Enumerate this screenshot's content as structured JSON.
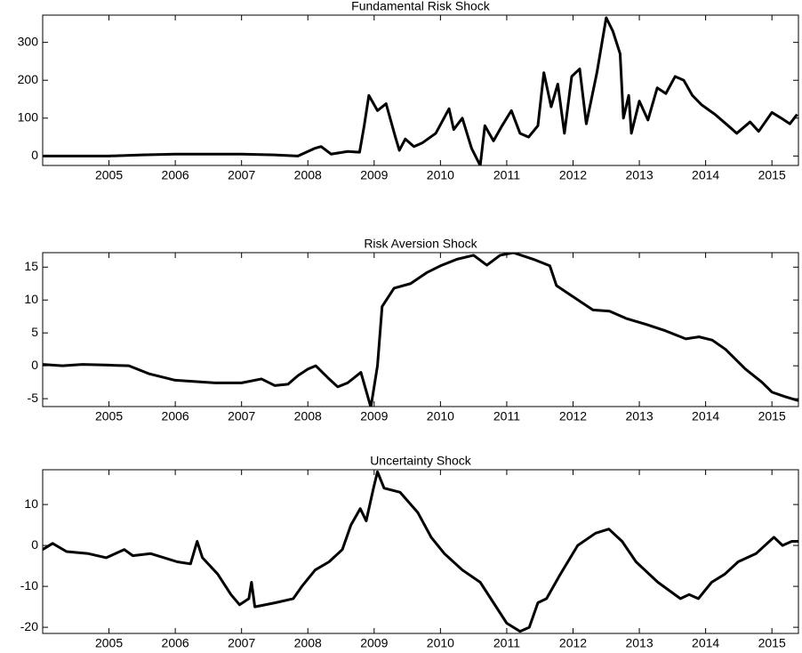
{
  "chart_data": [
    {
      "type": "line",
      "title": "Fundamental Risk Shock",
      "color": "#000000",
      "x": [
        2004.0,
        2004.5,
        2005.0,
        2005.5,
        2006.0,
        2006.5,
        2007.0,
        2007.5,
        2007.85,
        2008.1,
        2008.2,
        2008.35,
        2008.6,
        2008.78,
        2008.85,
        2008.92,
        2009.05,
        2009.18,
        2009.32,
        2009.38,
        2009.47,
        2009.6,
        2009.73,
        2009.93,
        2010.13,
        2010.2,
        2010.33,
        2010.47,
        2010.6,
        2010.67,
        2010.8,
        2010.93,
        2011.07,
        2011.2,
        2011.33,
        2011.47,
        2011.56,
        2011.67,
        2011.77,
        2011.87,
        2011.98,
        2012.1,
        2012.2,
        2012.36,
        2012.5,
        2012.6,
        2012.71,
        2012.76,
        2012.84,
        2012.88,
        2013.0,
        2013.13,
        2013.27,
        2013.4,
        2013.54,
        2013.67,
        2013.8,
        2013.94,
        2014.14,
        2014.34,
        2014.47,
        2014.67,
        2014.8,
        2015.0,
        2015.14,
        2015.27,
        2015.38
      ],
      "values": [
        0,
        0,
        0,
        3,
        5,
        5,
        5,
        3,
        0,
        20,
        25,
        5,
        12,
        10,
        80,
        160,
        120,
        138,
        50,
        15,
        45,
        25,
        35,
        60,
        125,
        70,
        100,
        20,
        -25,
        80,
        40,
        80,
        120,
        60,
        50,
        80,
        220,
        130,
        190,
        60,
        210,
        230,
        85,
        220,
        365,
        330,
        270,
        100,
        160,
        60,
        145,
        95,
        180,
        165,
        210,
        200,
        160,
        135,
        110,
        80,
        60,
        90,
        65,
        115,
        100,
        85,
        110
      ],
      "xlim": [
        2004.0,
        2015.4
      ],
      "xticks": [
        2005,
        2006,
        2007,
        2008,
        2009,
        2010,
        2011,
        2012,
        2013,
        2014,
        2015
      ],
      "ylim": [
        -25,
        372
      ],
      "yticks": [
        0,
        100,
        200,
        300
      ]
    },
    {
      "type": "line",
      "title": "Risk Aversion Shock",
      "color": "#000000",
      "x": [
        2004.0,
        2004.3,
        2004.6,
        2005.0,
        2005.3,
        2005.6,
        2006.0,
        2006.3,
        2006.6,
        2007.0,
        2007.3,
        2007.5,
        2007.7,
        2007.85,
        2008.0,
        2008.12,
        2008.3,
        2008.45,
        2008.6,
        2008.8,
        2008.95,
        2009.05,
        2009.12,
        2009.3,
        2009.55,
        2009.8,
        2010.0,
        2010.25,
        2010.5,
        2010.7,
        2010.9,
        2011.1,
        2011.4,
        2011.65,
        2011.75,
        2012.0,
        2012.3,
        2012.55,
        2012.8,
        2013.1,
        2013.4,
        2013.7,
        2013.9,
        2014.1,
        2014.3,
        2014.6,
        2014.85,
        2015.0,
        2015.2,
        2015.4
      ],
      "values": [
        0.2,
        0,
        0.2,
        0.1,
        0,
        -1.2,
        -2.2,
        -2.4,
        -2.6,
        -2.6,
        -2.0,
        -3.0,
        -2.8,
        -1.5,
        -0.5,
        0,
        -1.8,
        -3.2,
        -2.6,
        -1.0,
        -6.3,
        0,
        9,
        11.8,
        12.5,
        14.2,
        15.2,
        16.2,
        16.8,
        15.3,
        16.8,
        17.2,
        16.2,
        15.2,
        12.2,
        10.5,
        8.5,
        8.3,
        7.2,
        6.3,
        5.3,
        4.1,
        4.4,
        3.9,
        2.5,
        -0.5,
        -2.5,
        -4.0,
        -4.7,
        -5.3
      ],
      "xlim": [
        2004.0,
        2015.4
      ],
      "xticks": [
        2005,
        2006,
        2007,
        2008,
        2009,
        2010,
        2011,
        2012,
        2013,
        2014,
        2015
      ],
      "ylim": [
        -6.2,
        17.2
      ],
      "yticks": [
        -5,
        0,
        5,
        10,
        15
      ]
    },
    {
      "type": "line",
      "title": "Uncertainty Shock",
      "color": "#000000",
      "x": [
        2004.0,
        2004.15,
        2004.36,
        2004.69,
        2004.96,
        2005.23,
        2005.36,
        2005.63,
        2006.03,
        2006.23,
        2006.33,
        2006.41,
        2006.64,
        2006.84,
        2006.97,
        2007.11,
        2007.15,
        2007.2,
        2007.51,
        2007.78,
        2007.91,
        2008.11,
        2008.32,
        2008.52,
        2008.65,
        2008.79,
        2008.88,
        2008.99,
        2009.05,
        2009.15,
        2009.39,
        2009.66,
        2009.86,
        2010.06,
        2010.33,
        2010.6,
        2010.8,
        2011.0,
        2011.2,
        2011.34,
        2011.47,
        2011.6,
        2011.81,
        2012.07,
        2012.34,
        2012.54,
        2012.74,
        2012.95,
        2013.28,
        2013.62,
        2013.75,
        2013.89,
        2014.09,
        2014.29,
        2014.49,
        2014.76,
        2015.03,
        2015.16,
        2015.3,
        2015.4
      ],
      "values": [
        -1,
        0.5,
        -1.5,
        -2,
        -3,
        -1,
        -2.5,
        -2,
        -4,
        -4.5,
        1,
        -3,
        -7,
        -12,
        -14.5,
        -13,
        -9,
        -15,
        -14,
        -13,
        -10,
        -6,
        -4,
        -1,
        5,
        9,
        6,
        14,
        18,
        14,
        13,
        8,
        2,
        -2,
        -6,
        -9,
        -14,
        -19,
        -21,
        -20,
        -14,
        -13,
        -7,
        0,
        3,
        4,
        1,
        -4,
        -9,
        -13,
        -12,
        -13,
        -9,
        -7,
        -4,
        -2,
        2,
        0,
        1,
        1
      ],
      "xlim": [
        2004.0,
        2015.4
      ],
      "xticks": [
        2005,
        2006,
        2007,
        2008,
        2009,
        2010,
        2011,
        2012,
        2013,
        2014,
        2015
      ],
      "ylim": [
        -21.5,
        18.5
      ],
      "yticks": [
        -20,
        -10,
        0,
        10
      ]
    }
  ]
}
